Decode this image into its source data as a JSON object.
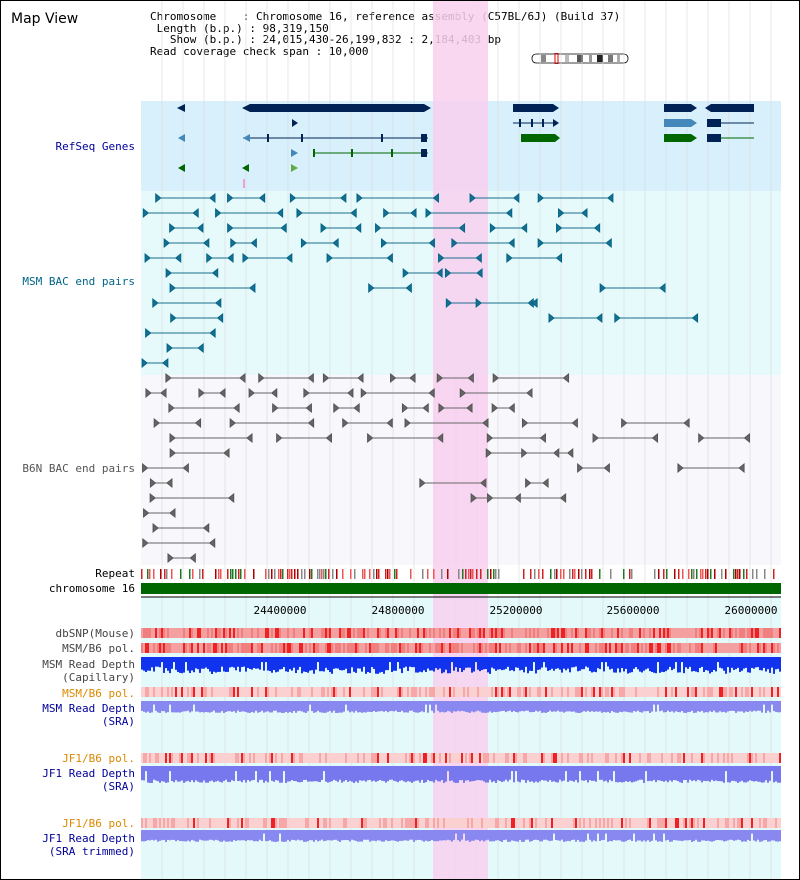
{
  "title": "Map View",
  "info": {
    "chromosome_line": "Chromosome    : Chromosome 16, reference assembly (C57BL/6J) (Build 37)",
    "length_line": " Length (b.p.) : 98,319,150",
    "show_line": "   Show (b.p.) : 24,015,430-26,199,832 : 2,184,403 bp",
    "coverage_line": "Read coverage check span : 10,000"
  },
  "tracks": {
    "refseq": "RefSeq Genes",
    "msm_bac": "MSM BAC end pairs",
    "b6n_bac": "B6N BAC end pairs",
    "repeat": "Repeat",
    "chromosome": "chromosome 16",
    "dbsnp": "dbSNP(Mouse)",
    "msm_b6_pol": "MSM/B6 pol.",
    "msm_depth_1": "MSM Read Depth",
    "msm_depth_2": "(Capillary)",
    "msm_b6_pol_sra": "MSM/B6 pol.",
    "msm_sra_1": "MSM Read Depth",
    "msm_sra_2": "(SRA)",
    "jf1_pol_1": "JF1/B6 pol.",
    "jf1_depth_1": "JF1 Read Depth",
    "jf1_sra_1": "(SRA)",
    "jf1_pol_2": "JF1/B6 pol.",
    "jf1_depth_2": "JF1 Read Depth",
    "jf1_sra_2": "(SRA trimmed)"
  },
  "axis_ticks": [
    "24400000",
    "24800000",
    "25200000",
    "25600000",
    "26000000"
  ],
  "colors": {
    "refseq_label": "#000099",
    "msm_label": "#006688",
    "b6n_label": "#555555",
    "orange_label": "#dd8800",
    "blue_label": "#000099",
    "highlight": "#f8d0ee",
    "chromosome_bar": "#006600",
    "gene_dark": "#002255"
  }
}
